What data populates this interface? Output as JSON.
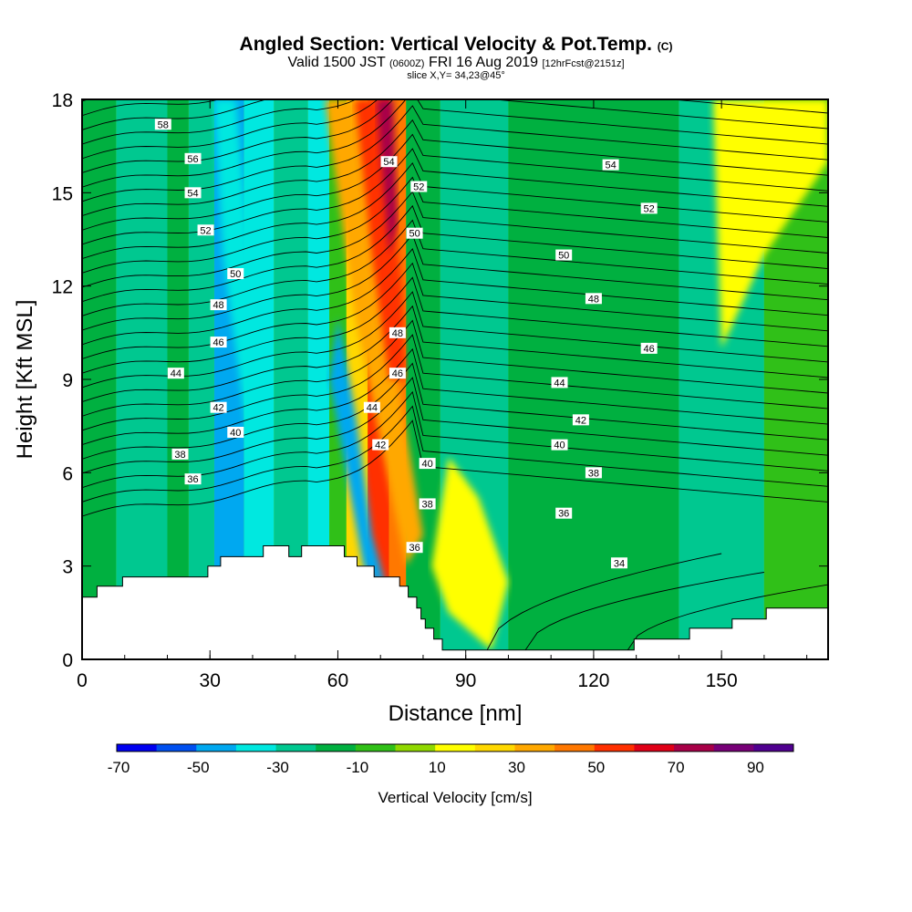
{
  "chart_data": {
    "type": "heatmap",
    "title": "Angled Section: Vertical Velocity & Pot.Temp.",
    "title_units": "(C)",
    "subtitle_main": "Valid 1500 JST",
    "subtitle_z": "(0600Z)",
    "subtitle_date": "FRI 16 Aug 2019",
    "subtitle_fcst": "[12hrFcst@2151z]",
    "subsubtitle": "slice X,Y= 34,23@45°",
    "xlabel": "Distance [nm]",
    "ylabel": "Height [Kft MSL]",
    "xlim": [
      0,
      175
    ],
    "ylim": [
      0,
      18
    ],
    "x_ticks": [
      0,
      30,
      60,
      90,
      120,
      150
    ],
    "x_tick_labels": [
      "0",
      "30",
      "60",
      "90",
      "120",
      "150"
    ],
    "y_ticks": [
      0,
      3,
      6,
      9,
      12,
      15,
      18
    ],
    "y_tick_labels": [
      "0",
      "3",
      "6",
      "9",
      "12",
      "15",
      "18"
    ],
    "colorbar": {
      "title": "Vertical Velocity [cm/s]",
      "colors": [
        "#0000f0",
        "#0050f0",
        "#00a8f0",
        "#00e8e0",
        "#00c890",
        "#00b040",
        "#30c018",
        "#90d800",
        "#ffff00",
        "#ffd800",
        "#ffa800",
        "#ff7800",
        "#ff3000",
        "#e00018",
        "#a80048",
        "#780078",
        "#500090"
      ],
      "bounds": [
        -80,
        -60,
        -40,
        -20,
        -10,
        0,
        10,
        20,
        30,
        40,
        50,
        60,
        70,
        80,
        90,
        100
      ],
      "tick_values": [
        -70,
        -50,
        -30,
        -10,
        10,
        30,
        50,
        70,
        90
      ],
      "tick_labels": [
        "-70",
        "-50",
        "-30",
        "-10",
        "10",
        "30",
        "50",
        "70",
        "90"
      ]
    },
    "velocity_bands": [
      {
        "x": [
          0,
          8
        ],
        "value": 5
      },
      {
        "x": [
          8,
          20
        ],
        "value": -5
      },
      {
        "x": [
          20,
          25
        ],
        "value": 5
      },
      {
        "x": [
          25,
          31
        ],
        "value": -5
      },
      {
        "x": [
          31,
          38
        ],
        "value": -25
      },
      {
        "x": [
          38,
          45
        ],
        "value": -15
      },
      {
        "x": [
          45,
          53
        ],
        "value": -5
      },
      {
        "x": [
          53,
          58
        ],
        "value": -15
      },
      {
        "x": [
          58,
          62
        ],
        "value": 15
      },
      {
        "x": [
          62,
          67
        ],
        "value": 45
      },
      {
        "x": [
          67,
          72
        ],
        "value": 75
      },
      {
        "x": [
          72,
          76
        ],
        "value": 65
      },
      {
        "x": [
          76,
          84
        ],
        "value": 5
      },
      {
        "x": [
          84,
          100
        ],
        "value": -5
      },
      {
        "x": [
          100,
          140
        ],
        "value": 5
      },
      {
        "x": [
          140,
          160
        ],
        "value": -5
      },
      {
        "x": [
          160,
          175
        ],
        "value": 15
      }
    ],
    "theta_contour_labels": [
      {
        "value": "58",
        "x": 19,
        "y": 17.2
      },
      {
        "value": "56",
        "x": 26,
        "y": 16.1
      },
      {
        "value": "54",
        "x": 26,
        "y": 15.0
      },
      {
        "value": "52",
        "x": 29,
        "y": 13.8
      },
      {
        "value": "50",
        "x": 36,
        "y": 12.4
      },
      {
        "value": "48",
        "x": 32,
        "y": 11.4
      },
      {
        "value": "46",
        "x": 32,
        "y": 10.2
      },
      {
        "value": "44",
        "x": 22,
        "y": 9.2
      },
      {
        "value": "42",
        "x": 32,
        "y": 8.1
      },
      {
        "value": "40",
        "x": 36,
        "y": 7.3
      },
      {
        "value": "38",
        "x": 23,
        "y": 6.6
      },
      {
        "value": "36",
        "x": 26,
        "y": 5.8
      },
      {
        "value": "54",
        "x": 72,
        "y": 16.0
      },
      {
        "value": "52",
        "x": 79,
        "y": 15.2
      },
      {
        "value": "50",
        "x": 78,
        "y": 13.7
      },
      {
        "value": "48",
        "x": 74,
        "y": 10.5
      },
      {
        "value": "46",
        "x": 74,
        "y": 9.2
      },
      {
        "value": "44",
        "x": 68,
        "y": 8.1
      },
      {
        "value": "42",
        "x": 70,
        "y": 6.9
      },
      {
        "value": "40",
        "x": 81,
        "y": 6.3
      },
      {
        "value": "38",
        "x": 81,
        "y": 5.0
      },
      {
        "value": "36",
        "x": 78,
        "y": 3.6
      },
      {
        "value": "54",
        "x": 124,
        "y": 15.9
      },
      {
        "value": "52",
        "x": 133,
        "y": 14.5
      },
      {
        "value": "50",
        "x": 113,
        "y": 13.0
      },
      {
        "value": "48",
        "x": 120,
        "y": 11.6
      },
      {
        "value": "46",
        "x": 133,
        "y": 10.0
      },
      {
        "value": "44",
        "x": 112,
        "y": 8.9
      },
      {
        "value": "42",
        "x": 117,
        "y": 7.7
      },
      {
        "value": "40",
        "x": 112,
        "y": 6.9
      },
      {
        "value": "38",
        "x": 120,
        "y": 6.0
      },
      {
        "value": "36",
        "x": 113,
        "y": 4.7
      },
      {
        "value": "34",
        "x": 126,
        "y": 3.1
      }
    ],
    "terrain": [
      [
        0,
        2.0
      ],
      [
        3.5,
        2.0
      ],
      [
        3.5,
        2.35
      ],
      [
        9.5,
        2.35
      ],
      [
        9.5,
        2.65
      ],
      [
        29.5,
        2.65
      ],
      [
        29.5,
        3.0
      ],
      [
        32.5,
        3.0
      ],
      [
        32.5,
        3.3
      ],
      [
        42.5,
        3.3
      ],
      [
        42.5,
        3.65
      ],
      [
        48.5,
        3.65
      ],
      [
        48.5,
        3.3
      ],
      [
        51.5,
        3.3
      ],
      [
        51.5,
        3.65
      ],
      [
        61.5,
        3.65
      ],
      [
        61.5,
        3.3
      ],
      [
        64.5,
        3.3
      ],
      [
        64.5,
        3.0
      ],
      [
        68.5,
        3.0
      ],
      [
        68.5,
        2.65
      ],
      [
        74.5,
        2.65
      ],
      [
        74.5,
        2.35
      ],
      [
        76.5,
        2.35
      ],
      [
        76.5,
        2.0
      ],
      [
        78.5,
        2.0
      ],
      [
        78.5,
        1.65
      ],
      [
        79.5,
        1.65
      ],
      [
        79.5,
        1.3
      ],
      [
        80.5,
        1.3
      ],
      [
        80.5,
        1.0
      ],
      [
        82.5,
        1.0
      ],
      [
        82.5,
        0.65
      ],
      [
        84.5,
        0.65
      ],
      [
        84.5,
        0.3
      ],
      [
        129.5,
        0.3
      ],
      [
        129.5,
        0.65
      ],
      [
        142.5,
        0.65
      ],
      [
        142.5,
        1.0
      ],
      [
        152.5,
        1.0
      ],
      [
        152.5,
        1.3
      ],
      [
        160.5,
        1.3
      ],
      [
        160.5,
        1.65
      ],
      [
        175,
        1.65
      ],
      [
        175,
        0
      ],
      [
        0,
        0
      ]
    ]
  }
}
